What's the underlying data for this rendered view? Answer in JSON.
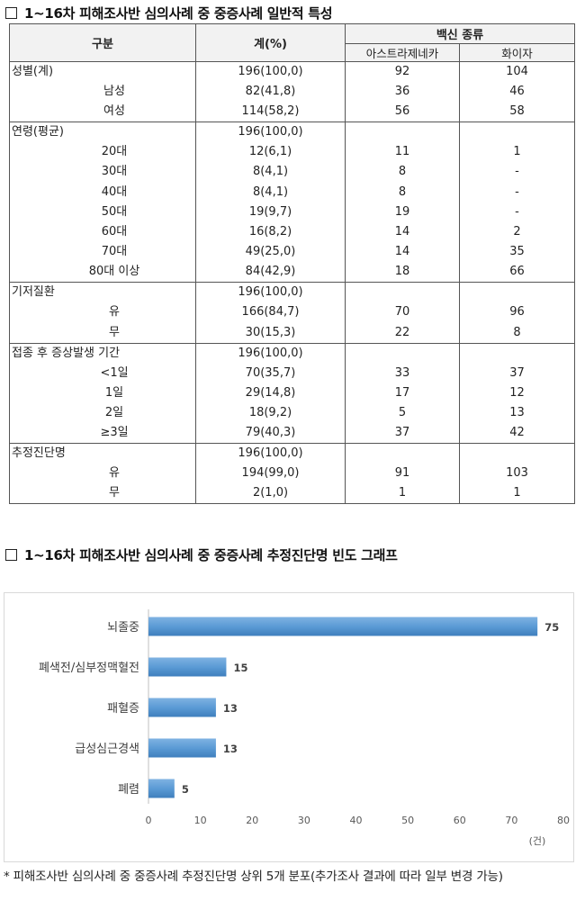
{
  "table_section": {
    "title": "1~16차 피해조사반 심의사례 중 중증사례 일반적 특성"
  },
  "table": {
    "headers": {
      "category": "구분",
      "total": "계(%)",
      "vaccine_group": "백신 종류",
      "az": "아스트라제네카",
      "pfizer": "화이자"
    },
    "rows": [
      {
        "label": "성별(계)",
        "total": "196(100,0)",
        "az": "92",
        "pf": "104",
        "level": "main",
        "group_start": true
      },
      {
        "label": "남성",
        "total": "82(41,8)",
        "az": "36",
        "pf": "46",
        "level": "sub"
      },
      {
        "label": "여성",
        "total": "114(58,2)",
        "az": "56",
        "pf": "58",
        "level": "sub"
      },
      {
        "label": "연령(평균)",
        "total": "196(100,0)",
        "az": "",
        "pf": "",
        "level": "main",
        "group_start": true
      },
      {
        "label": "20대",
        "total": "12(6,1)",
        "az": "11",
        "pf": "1",
        "level": "sub"
      },
      {
        "label": "30대",
        "total": "8(4,1)",
        "az": "8",
        "pf": "-",
        "level": "sub"
      },
      {
        "label": "40대",
        "total": "8(4,1)",
        "az": "8",
        "pf": "-",
        "level": "sub"
      },
      {
        "label": "50대",
        "total": "19(9,7)",
        "az": "19",
        "pf": "-",
        "level": "sub"
      },
      {
        "label": "60대",
        "total": "16(8,2)",
        "az": "14",
        "pf": "2",
        "level": "sub"
      },
      {
        "label": "70대",
        "total": "49(25,0)",
        "az": "14",
        "pf": "35",
        "level": "sub"
      },
      {
        "label": "80대 이상",
        "total": "84(42,9)",
        "az": "18",
        "pf": "66",
        "level": "sub"
      },
      {
        "label": "기저질환",
        "total": "196(100,0)",
        "az": "",
        "pf": "",
        "level": "main",
        "group_start": true
      },
      {
        "label": "유",
        "total": "166(84,7)",
        "az": "70",
        "pf": "96",
        "level": "sub"
      },
      {
        "label": "무",
        "total": "30(15,3)",
        "az": "22",
        "pf": "8",
        "level": "sub"
      },
      {
        "label": "접종 후 증상발생 기간",
        "total": "196(100,0)",
        "az": "",
        "pf": "",
        "level": "main",
        "group_start": true
      },
      {
        "label": "<1일",
        "total": "70(35,7)",
        "az": "33",
        "pf": "37",
        "level": "sub"
      },
      {
        "label": "1일",
        "total": "29(14,8)",
        "az": "17",
        "pf": "12",
        "level": "sub"
      },
      {
        "label": "2일",
        "total": "18(9,2)",
        "az": "5",
        "pf": "13",
        "level": "sub"
      },
      {
        "label": "≥3일",
        "total": "79(40,3)",
        "az": "37",
        "pf": "42",
        "level": "sub"
      },
      {
        "label": "추정진단명",
        "total": "196(100,0)",
        "az": "",
        "pf": "",
        "level": "main",
        "group_start": true
      },
      {
        "label": "유",
        "total": "194(99,0)",
        "az": "91",
        "pf": "103",
        "level": "sub"
      },
      {
        "label": "무",
        "total": "2(1,0)",
        "az": "1",
        "pf": "1",
        "level": "sub",
        "last": true
      }
    ]
  },
  "chart_section": {
    "title": "1~16차 피해조사반 심의사례 중 중증사례 추정진단명 빈도 그래프"
  },
  "chart_data": {
    "type": "bar",
    "orientation": "horizontal",
    "categories": [
      "뇌졸중",
      "폐색전/심부정맥혈전",
      "패혈증",
      "급성심근경색",
      "폐렴"
    ],
    "values": [
      75,
      15,
      13,
      13,
      5
    ],
    "xlim": [
      0,
      80
    ],
    "xticks": [
      "0",
      "10",
      "20",
      "30",
      "40",
      "50",
      "60",
      "70",
      "80"
    ],
    "unit_label": "(건)",
    "bar_color": "#5b9bd5",
    "grid": false
  },
  "footnote": {
    "text": "* 피해조사반 심의사례 중 중증사례 추정진단명 상위 5개 분포(추가조사 결과에 따라 일부 변경 가능)"
  }
}
